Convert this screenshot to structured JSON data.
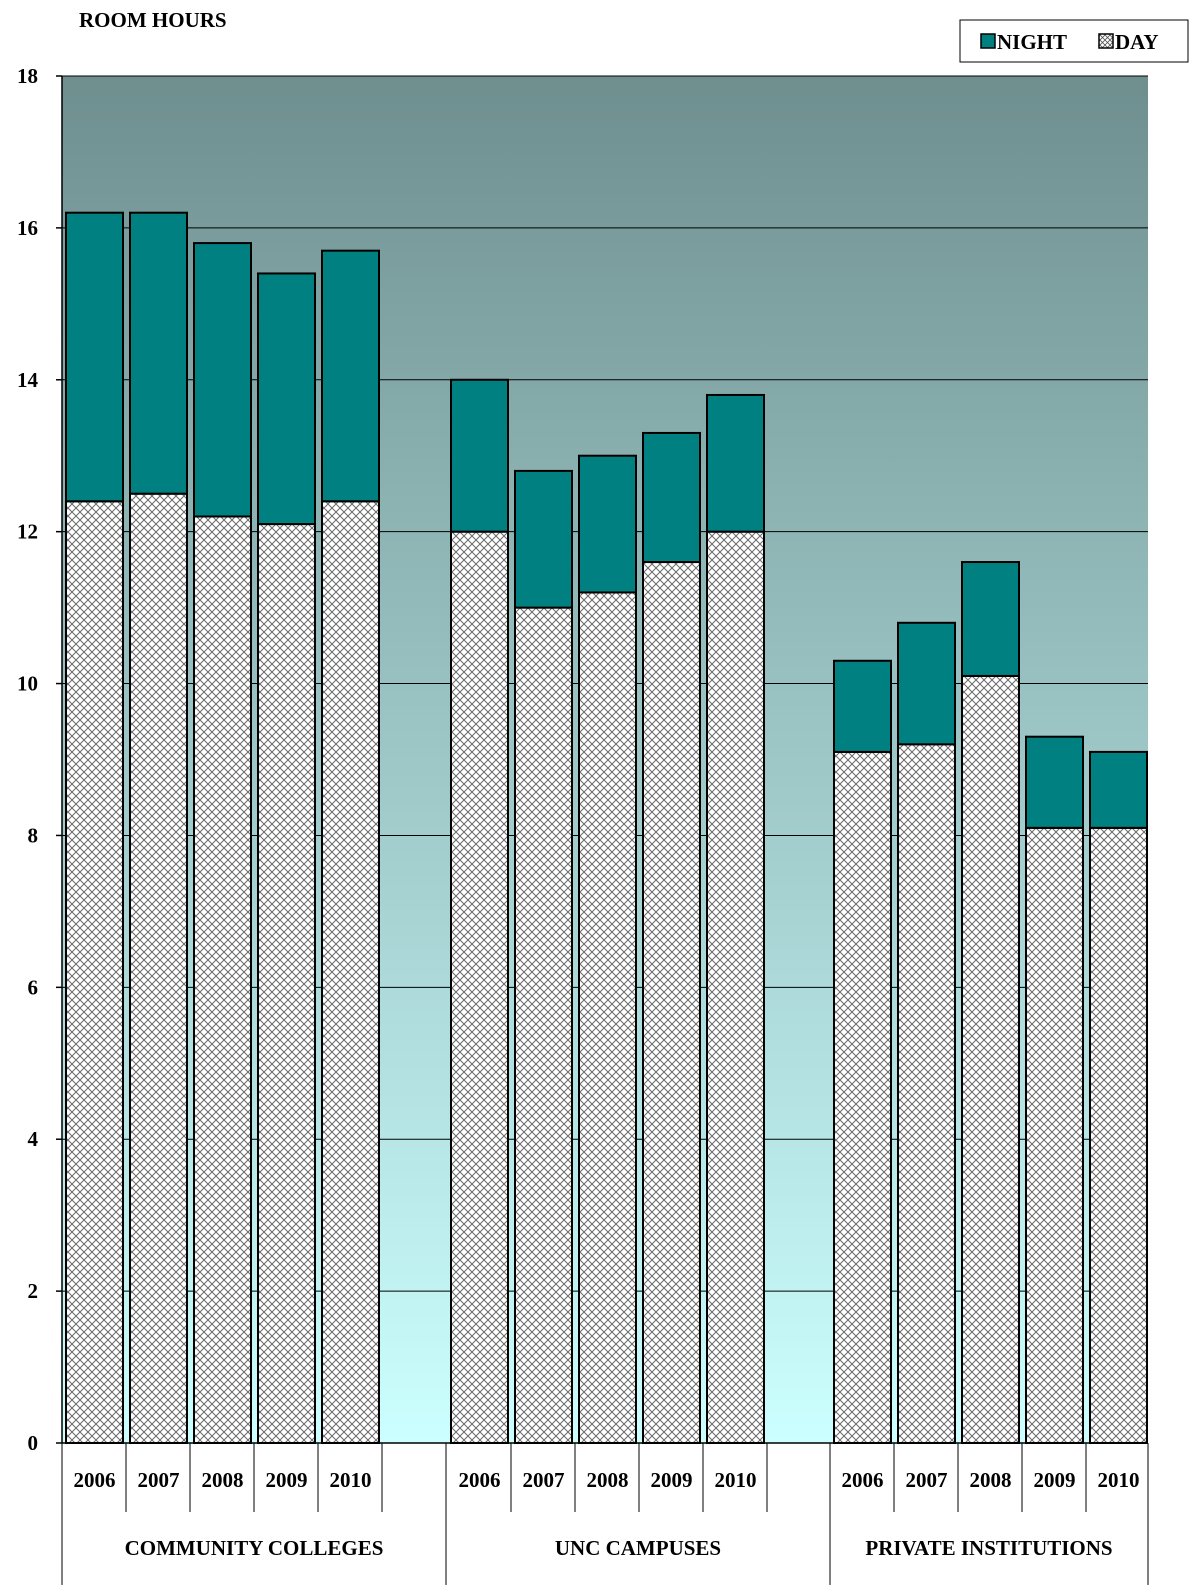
{
  "chart_data": {
    "type": "bar",
    "stacked": true,
    "ylabel": "ROOM HOURS",
    "ylim": [
      0,
      18
    ],
    "yticks": [
      0,
      2,
      4,
      6,
      8,
      10,
      12,
      14,
      16,
      18
    ],
    "grid": true,
    "legend_position": "top-right",
    "groups": [
      {
        "label": "COMMUNITY COLLEGES",
        "categories": [
          "2006",
          "2007",
          "2008",
          "2009",
          "2010"
        ],
        "day": [
          12.4,
          12.5,
          12.2,
          12.1,
          12.4
        ],
        "total": [
          16.2,
          16.2,
          15.8,
          15.4,
          15.7
        ]
      },
      {
        "label": "UNC CAMPUSES",
        "categories": [
          "2006",
          "2007",
          "2008",
          "2009",
          "2010"
        ],
        "day": [
          12.0,
          11.0,
          11.2,
          11.6,
          12.0
        ],
        "total": [
          14.0,
          12.8,
          13.0,
          13.3,
          13.8
        ]
      },
      {
        "label": "PRIVATE INSTITUTIONS",
        "categories": [
          "2006",
          "2007",
          "2008",
          "2009",
          "2010"
        ],
        "day": [
          9.1,
          9.2,
          10.1,
          8.1,
          8.1
        ],
        "total": [
          10.3,
          10.8,
          11.6,
          9.3,
          9.1
        ]
      }
    ],
    "series": [
      {
        "name": "NIGHT",
        "color": "#008080",
        "pattern": "solid"
      },
      {
        "name": "DAY",
        "color": "#ffffff",
        "pattern": "crosshatch"
      }
    ],
    "background_gradient": [
      "#6f8f8f",
      "#ccffff"
    ]
  }
}
